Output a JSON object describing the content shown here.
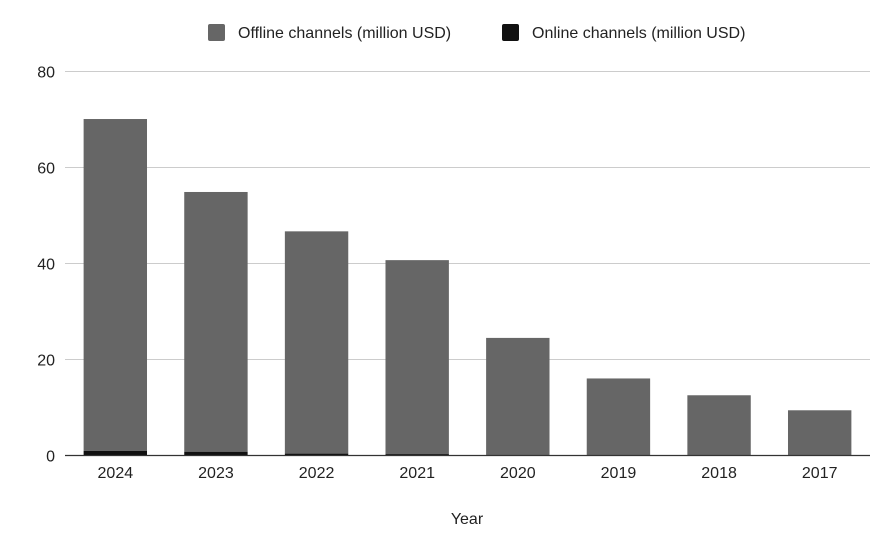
{
  "chart_data": {
    "type": "bar",
    "stacked": true,
    "title": "",
    "xlabel": "Year",
    "ylabel": "",
    "ylim": [
      0,
      80
    ],
    "yticks": [
      0,
      20,
      40,
      60,
      80
    ],
    "grid": true,
    "legend_position": "top",
    "categories": [
      "2024",
      "2023",
      "2022",
      "2021",
      "2020",
      "2019",
      "2018",
      "2017"
    ],
    "series": [
      {
        "name": "Online channels (million USD)",
        "color": "#111111",
        "values": [
          1.0,
          0.8,
          0.4,
          0.3,
          0.1,
          0.05,
          0.05,
          0.02
        ]
      },
      {
        "name": "Offline channels (million USD)",
        "color": "#666666",
        "values": [
          69.1,
          54.1,
          46.3,
          40.4,
          24.4,
          16.0,
          12.5,
          9.4
        ]
      }
    ],
    "legend_order": [
      "Offline channels (million USD)",
      "Online channels (million USD)"
    ]
  }
}
